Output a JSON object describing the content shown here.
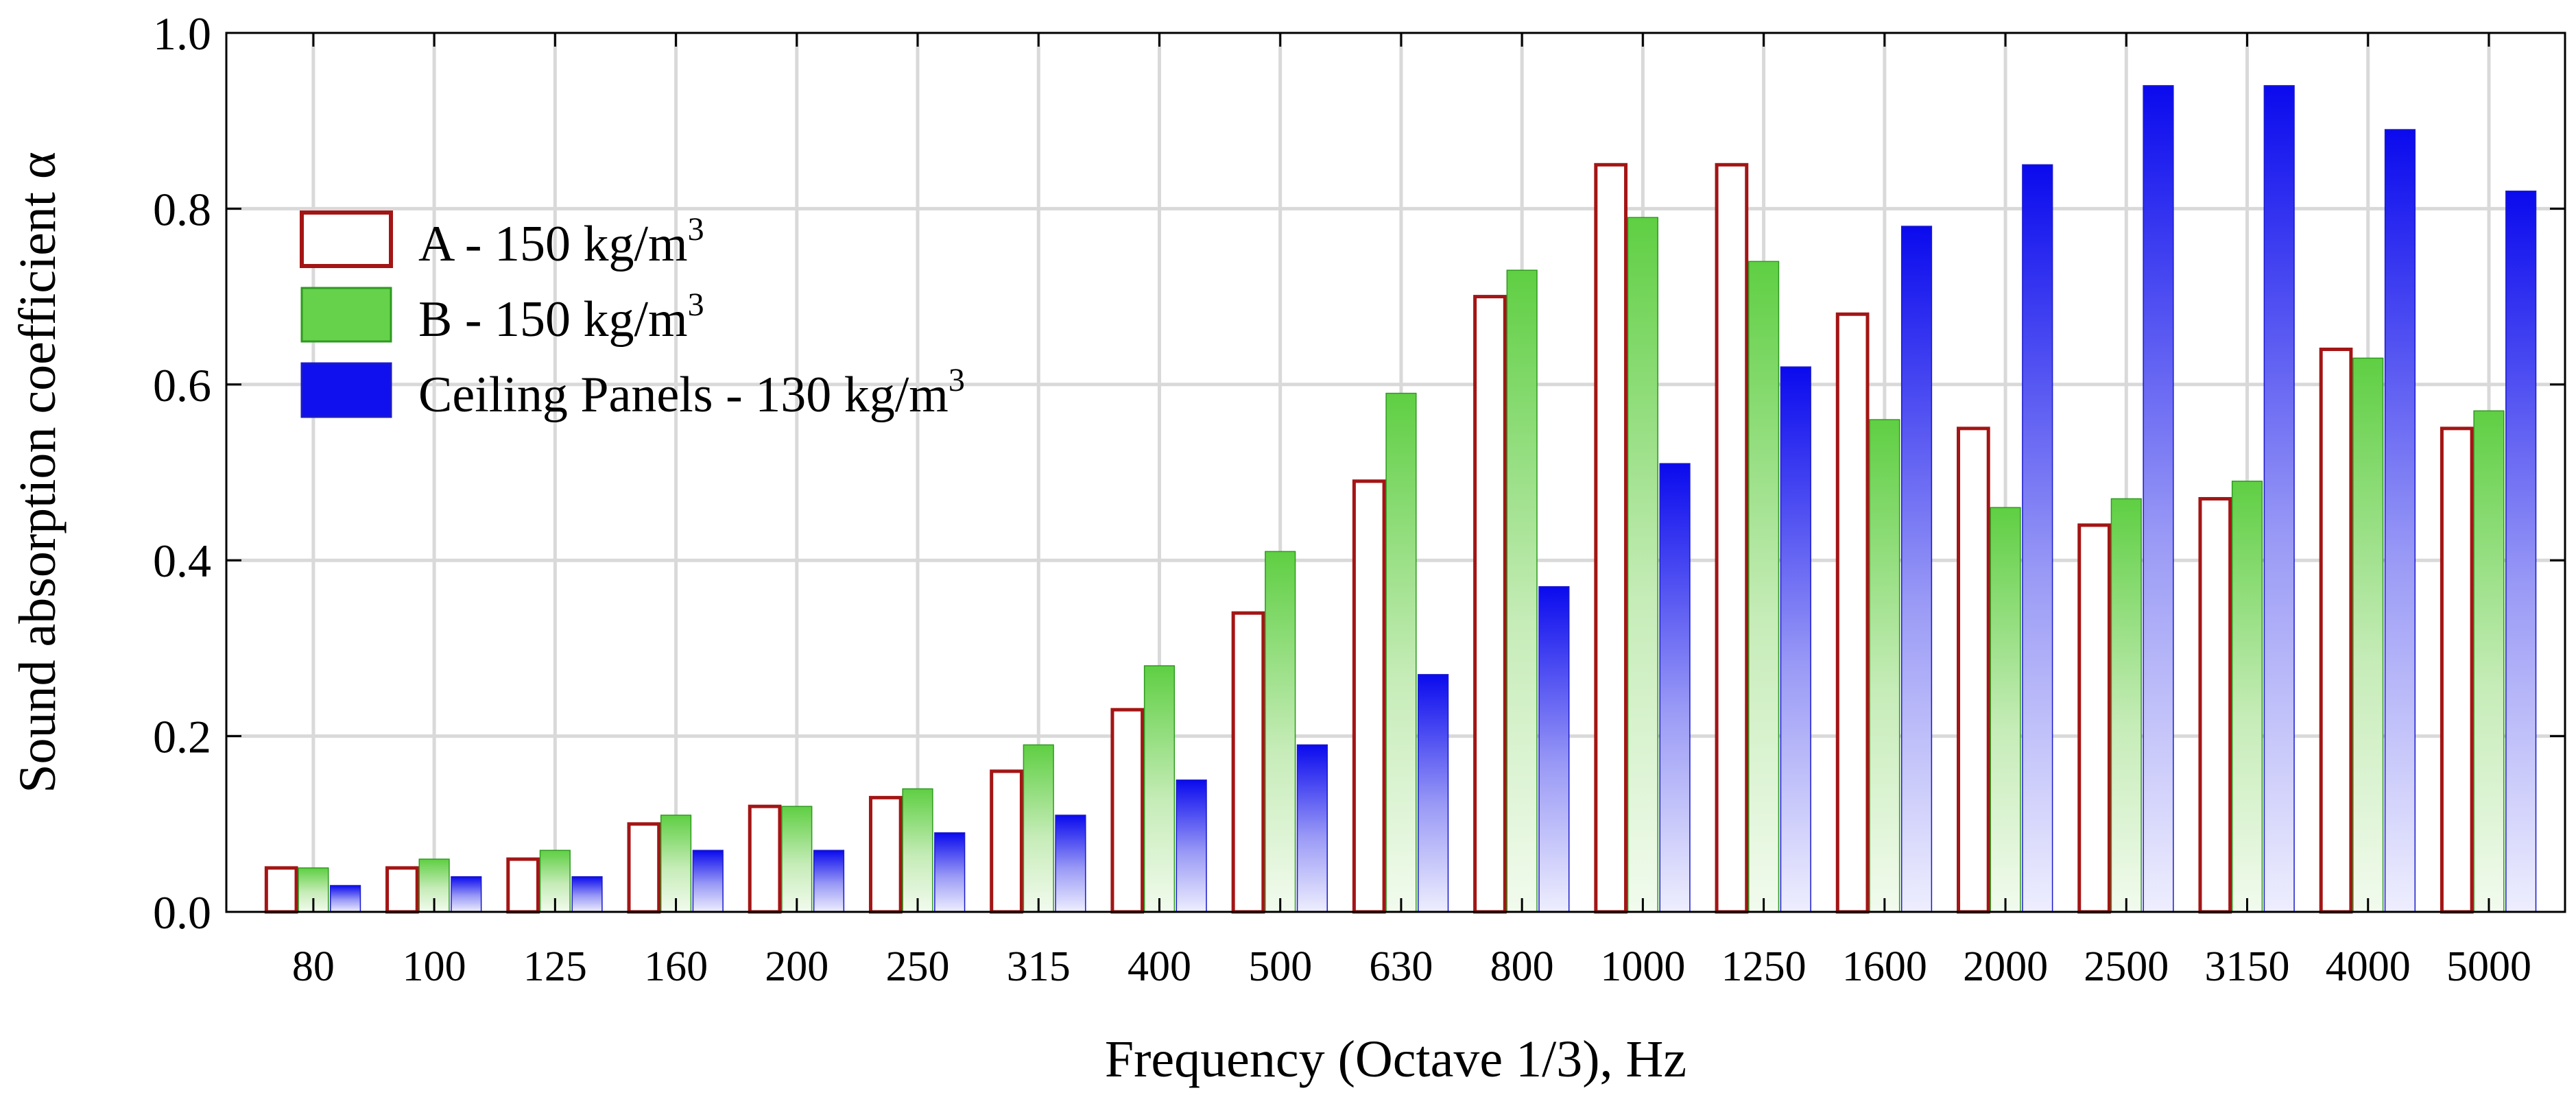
{
  "chart_data": {
    "type": "bar",
    "title": "",
    "xlabel": "Frequency (Octave 1/3), Hz",
    "ylabel": "Sound absorption coefficient α",
    "ylim": [
      0,
      1
    ],
    "yticks": [
      "0.0",
      "0.2",
      "0.4",
      "0.6",
      "0.8",
      "1.0"
    ],
    "grid": true,
    "legend_position": "top-left",
    "categories": [
      "80",
      "100",
      "125",
      "160",
      "200",
      "250",
      "315",
      "400",
      "500",
      "630",
      "800",
      "1000",
      "1250",
      "1600",
      "2000",
      "2500",
      "3150",
      "4000",
      "5000"
    ],
    "series": [
      {
        "name": "A - 150 kg/m",
        "name_sup": "3",
        "color": "#a31515",
        "style": "outline",
        "values": [
          0.05,
          0.05,
          0.06,
          0.1,
          0.12,
          0.13,
          0.16,
          0.23,
          0.34,
          0.49,
          0.7,
          0.85,
          0.85,
          0.68,
          0.55,
          0.44,
          0.47,
          0.64,
          0.55
        ]
      },
      {
        "name": "B - 150 kg/m",
        "name_sup": "3",
        "color": "#66d14a",
        "edge_color": "#2e9a1f",
        "style": "gradient",
        "values": [
          0.05,
          0.06,
          0.07,
          0.11,
          0.12,
          0.14,
          0.19,
          0.28,
          0.41,
          0.59,
          0.73,
          0.79,
          0.74,
          0.56,
          0.46,
          0.47,
          0.49,
          0.63,
          0.57
        ]
      },
      {
        "name": "Ceiling Panels - 130 kg/m",
        "name_sup": "3",
        "color": "#1010ee",
        "edge_color": "#1a1acc",
        "style": "gradient",
        "values": [
          0.03,
          0.04,
          0.04,
          0.07,
          0.07,
          0.09,
          0.11,
          0.15,
          0.19,
          0.27,
          0.37,
          0.51,
          0.62,
          0.78,
          0.85,
          0.94,
          0.94,
          0.89,
          0.82
        ]
      }
    ]
  }
}
